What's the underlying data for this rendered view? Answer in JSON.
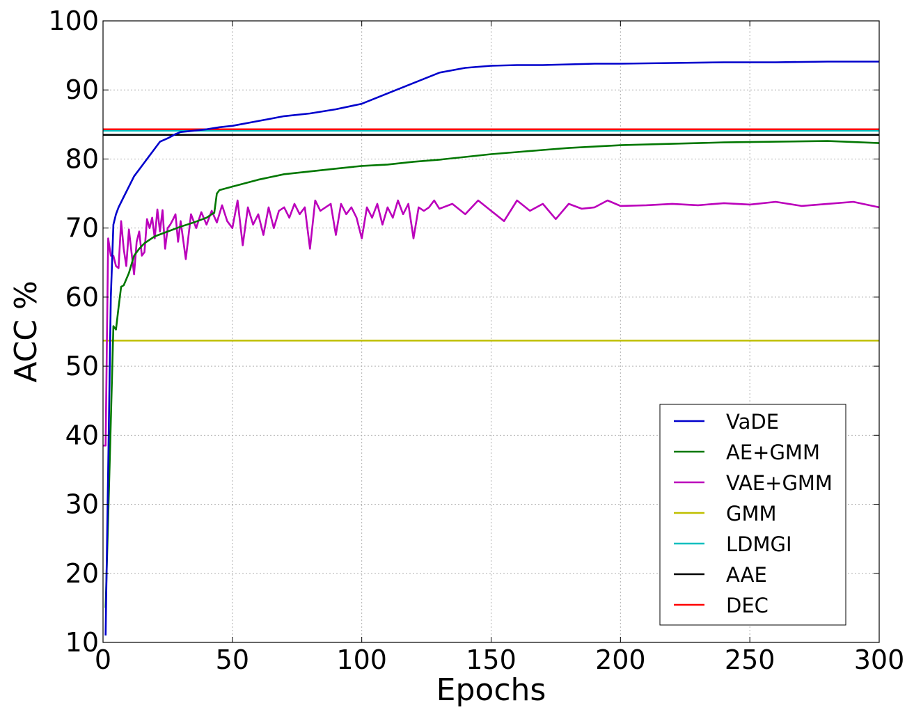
{
  "chart_data": {
    "type": "line",
    "title": "",
    "xlabel": "Epochs",
    "ylabel": "ACC %",
    "xlim": [
      0,
      300
    ],
    "ylim": [
      10,
      100
    ],
    "xticks": [
      0,
      50,
      100,
      150,
      200,
      250,
      300
    ],
    "yticks": [
      10,
      20,
      30,
      40,
      50,
      60,
      70,
      80,
      90,
      100
    ],
    "grid": true,
    "legend_position": "lower-right",
    "series": [
      {
        "name": "VaDE",
        "color": "#0000cc",
        "kind": "curve",
        "x": [
          1,
          2,
          3,
          4,
          5,
          6,
          8,
          10,
          12,
          15,
          18,
          20,
          22,
          25,
          28,
          30,
          35,
          40,
          45,
          50,
          60,
          70,
          80,
          90,
          100,
          110,
          120,
          130,
          140,
          150,
          160,
          170,
          180,
          190,
          200,
          220,
          240,
          260,
          280,
          300
        ],
        "y": [
          11.0,
          35.0,
          60.0,
          70.5,
          72.0,
          73.0,
          74.5,
          76.0,
          77.5,
          79.0,
          80.5,
          81.5,
          82.5,
          83.0,
          83.6,
          83.9,
          84.1,
          84.3,
          84.6,
          84.8,
          85.5,
          86.2,
          86.6,
          87.2,
          88.0,
          89.5,
          91.0,
          92.5,
          93.2,
          93.5,
          93.6,
          93.6,
          93.7,
          93.8,
          93.8,
          93.9,
          94.0,
          94.0,
          94.1,
          94.1
        ]
      },
      {
        "name": "AE+GMM",
        "color": "#007700",
        "kind": "curve",
        "x": [
          1,
          2,
          3,
          4,
          5,
          6,
          7,
          8,
          10,
          12,
          14,
          16,
          18,
          20,
          25,
          30,
          35,
          40,
          42,
          43,
          44,
          45,
          50,
          60,
          70,
          80,
          90,
          100,
          110,
          120,
          130,
          140,
          150,
          160,
          170,
          180,
          190,
          200,
          220,
          240,
          260,
          280,
          300
        ],
        "y": [
          15.0,
          28.0,
          42.0,
          55.8,
          55.3,
          58.5,
          61.5,
          61.7,
          63.5,
          66.0,
          67.0,
          67.8,
          68.3,
          68.8,
          69.5,
          70.2,
          70.8,
          71.5,
          72.0,
          72.2,
          75.0,
          75.5,
          76.0,
          77.0,
          77.8,
          78.2,
          78.6,
          79.0,
          79.2,
          79.6,
          79.9,
          80.3,
          80.7,
          81.0,
          81.3,
          81.6,
          81.8,
          82.0,
          82.2,
          82.4,
          82.5,
          82.6,
          82.3
        ]
      },
      {
        "name": "VAE+GMM",
        "color": "#bb00bb",
        "kind": "curve",
        "x": [
          0,
          1,
          2,
          3,
          4,
          5,
          6,
          7,
          8,
          9,
          10,
          11,
          12,
          13,
          14,
          15,
          16,
          17,
          18,
          19,
          20,
          21,
          22,
          23,
          24,
          25,
          26,
          27,
          28,
          29,
          30,
          32,
          34,
          36,
          38,
          40,
          42,
          44,
          46,
          48,
          50,
          52,
          54,
          56,
          58,
          60,
          62,
          64,
          66,
          68,
          70,
          72,
          74,
          76,
          78,
          80,
          82,
          84,
          86,
          88,
          90,
          92,
          94,
          96,
          98,
          100,
          102,
          104,
          106,
          108,
          110,
          112,
          114,
          116,
          118,
          120,
          122,
          124,
          126,
          128,
          130,
          135,
          140,
          145,
          150,
          155,
          160,
          165,
          170,
          175,
          180,
          185,
          190,
          195,
          200,
          210,
          220,
          230,
          240,
          250,
          260,
          270,
          280,
          290,
          300
        ],
        "y": [
          38.5,
          38.5,
          68.5,
          66.0,
          66.0,
          64.5,
          64.2,
          71.0,
          67.0,
          64.5,
          69.8,
          66.5,
          63.3,
          68.0,
          69.5,
          66.0,
          66.5,
          71.3,
          70.0,
          71.5,
          68.5,
          72.7,
          69.5,
          72.6,
          67.0,
          70.0,
          70.5,
          71.2,
          72.0,
          68.0,
          71.0,
          65.5,
          72.0,
          70.0,
          72.3,
          70.5,
          72.5,
          70.8,
          73.3,
          71.0,
          70.0,
          74.0,
          67.5,
          73.0,
          70.5,
          72.0,
          69.0,
          73.0,
          70.0,
          72.5,
          73.0,
          71.5,
          73.5,
          72.0,
          73.0,
          67.0,
          74.0,
          72.5,
          73.0,
          73.5,
          69.0,
          73.5,
          72.0,
          73.0,
          71.5,
          68.5,
          73.0,
          71.5,
          73.5,
          70.5,
          73.0,
          71.5,
          74.0,
          72.0,
          73.5,
          68.5,
          73.0,
          72.5,
          73.0,
          74.0,
          72.8,
          73.5,
          72.0,
          74.0,
          72.5,
          71.0,
          74.0,
          72.5,
          73.5,
          71.3,
          73.5,
          72.8,
          73.0,
          74.0,
          73.2,
          73.3,
          73.5,
          73.3,
          73.6,
          73.4,
          73.8,
          73.2,
          73.5,
          73.8,
          73.0
        ]
      },
      {
        "name": "GMM",
        "color": "#bfbf00",
        "kind": "constant",
        "value": 53.7
      },
      {
        "name": "LDMGI",
        "color": "#00bfbf",
        "kind": "constant",
        "value": 84.1
      },
      {
        "name": "AAE",
        "color": "#000000",
        "kind": "constant",
        "value": 83.5
      },
      {
        "name": "DEC",
        "color": "#ff0000",
        "kind": "constant",
        "value": 84.3
      }
    ]
  }
}
